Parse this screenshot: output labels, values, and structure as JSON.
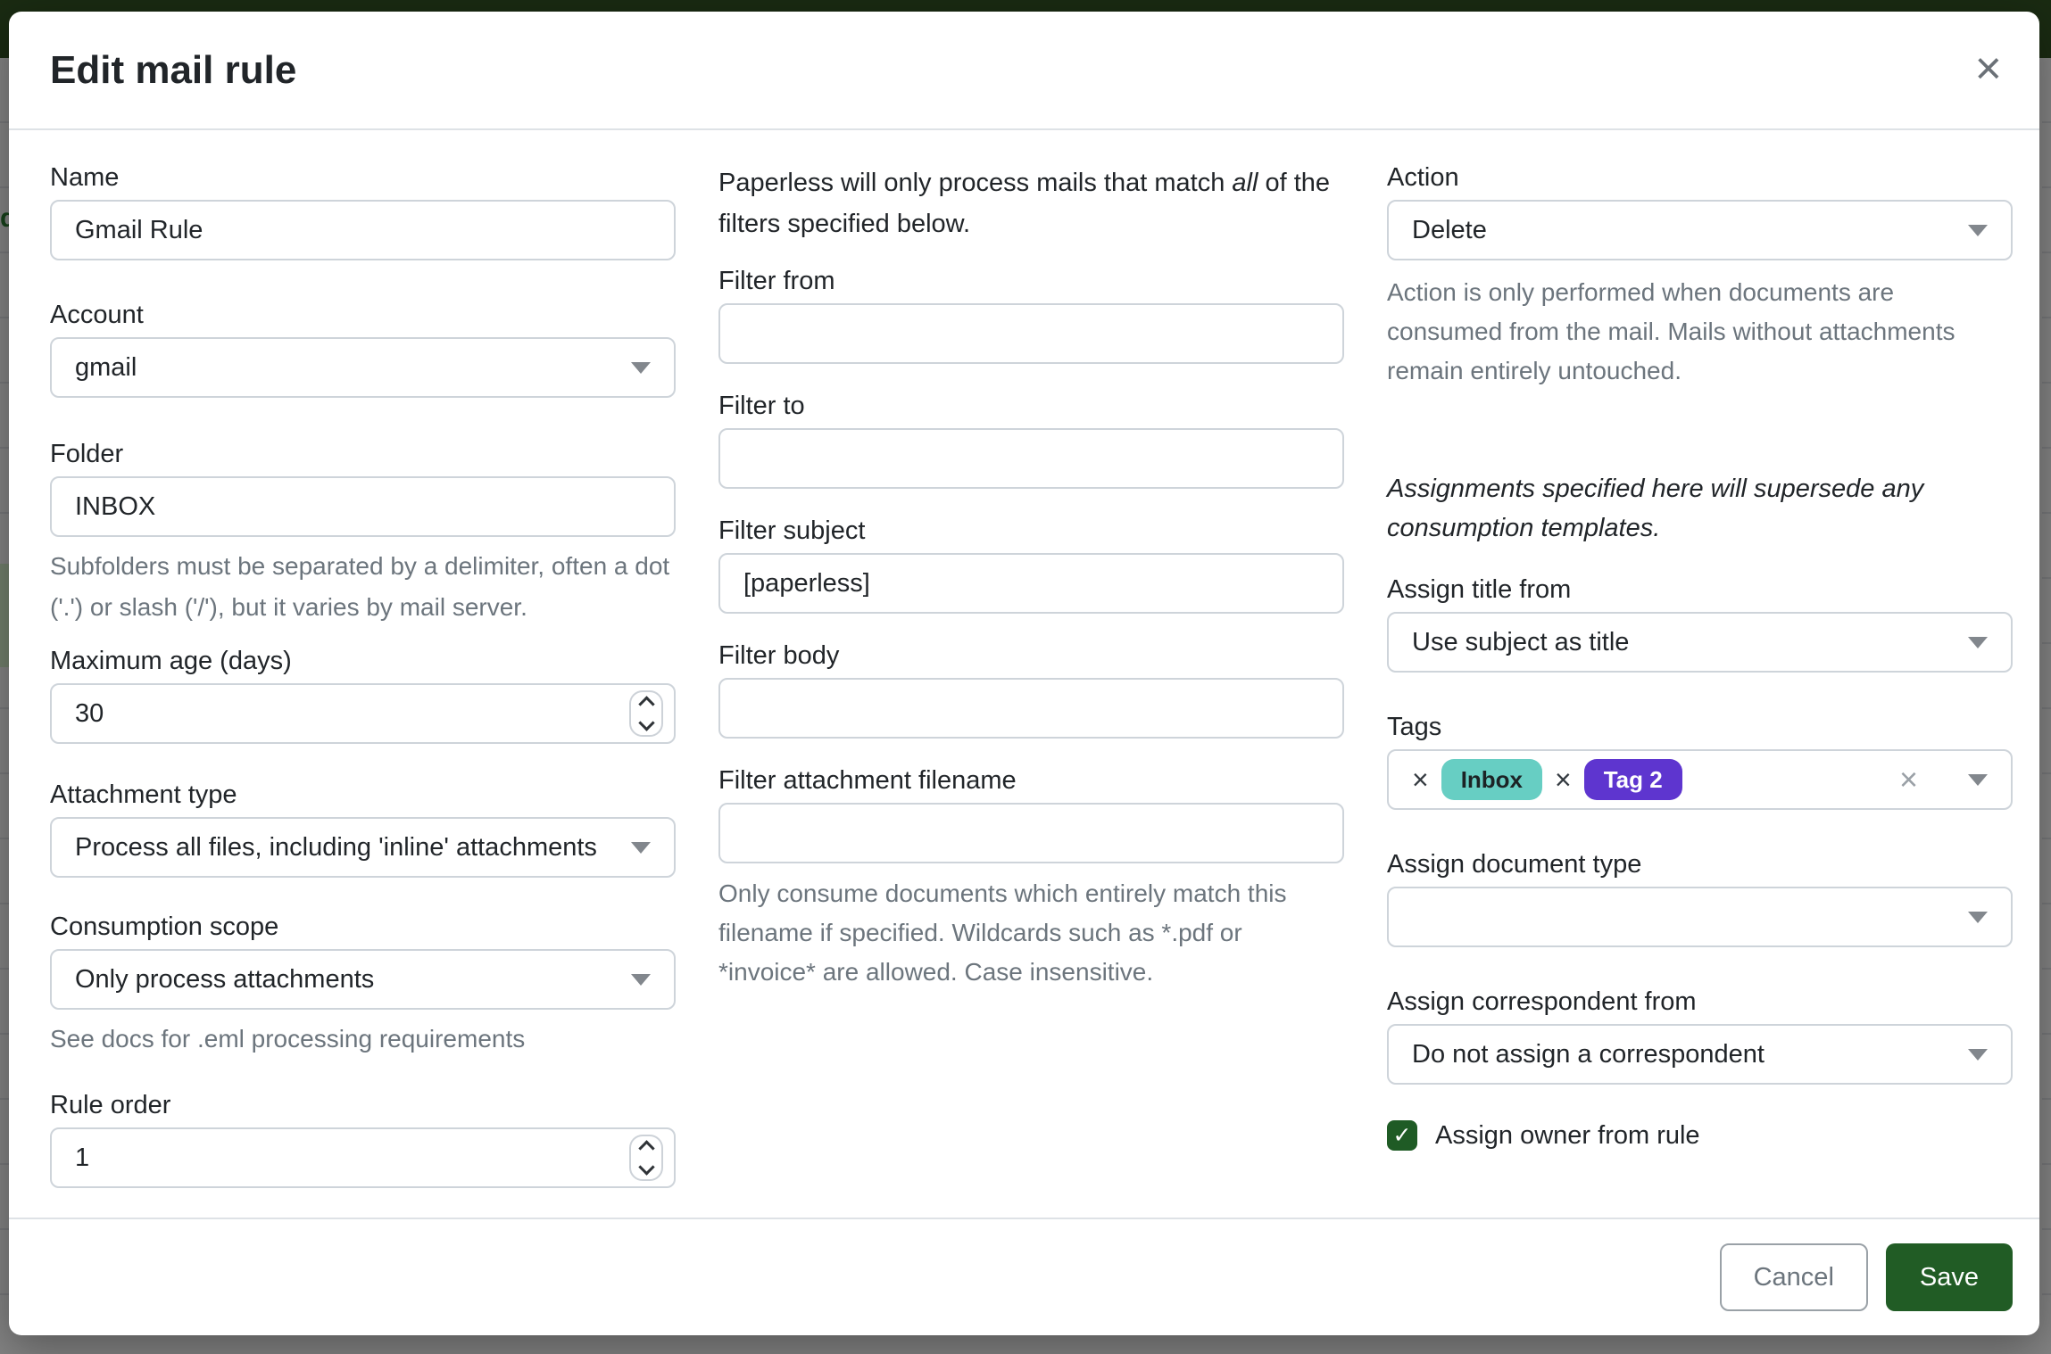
{
  "backdrop": {
    "stray_text": "d",
    "navbar_color": "#1a2b12",
    "dim_color": "#848484"
  },
  "modal": {
    "title": "Edit mail rule",
    "close_icon": "×"
  },
  "left": {
    "name": {
      "label": "Name",
      "value": "Gmail Rule"
    },
    "account": {
      "label": "Account",
      "value": "gmail"
    },
    "folder": {
      "label": "Folder",
      "value": "INBOX",
      "help": "Subfolders must be separated by a delimiter, often a dot ('.') or slash ('/'), but it varies by mail server."
    },
    "max_age": {
      "label": "Maximum age (days)",
      "value": "30"
    },
    "attachment_type": {
      "label": "Attachment type",
      "value": "Process all files, including 'inline' attachments"
    },
    "consumption_scope": {
      "label": "Consumption scope",
      "value": "Only process attachments",
      "help": "See docs for .eml processing requirements"
    },
    "rule_order": {
      "label": "Rule order",
      "value": "1"
    }
  },
  "middle": {
    "intro": {
      "pre": "Paperless will only process mails that match ",
      "em": "all",
      "post": " of the filters specified below."
    },
    "filter_from": {
      "label": "Filter from",
      "value": ""
    },
    "filter_to": {
      "label": "Filter to",
      "value": ""
    },
    "filter_subject": {
      "label": "Filter subject",
      "value": "[paperless]"
    },
    "filter_body": {
      "label": "Filter body",
      "value": ""
    },
    "filter_attachment_filename": {
      "label": "Filter attachment filename",
      "value": "",
      "help": "Only consume documents which entirely match this filename if specified. Wildcards such as *.pdf or *invoice* are allowed. Case insensitive."
    }
  },
  "right": {
    "action": {
      "label": "Action",
      "value": "Delete",
      "help": "Action is only performed when documents are consumed from the mail. Mails without attachments remain entirely untouched."
    },
    "note": "Assignments specified here will supersede any consumption templates.",
    "assign_title_from": {
      "label": "Assign title from",
      "value": "Use subject as title"
    },
    "tags": {
      "label": "Tags",
      "remove_icon": "×",
      "clear_icon": "×",
      "items": [
        {
          "name": "Inbox",
          "color": "#67cec3",
          "text_color": "#1c2325"
        },
        {
          "name": "Tag 2",
          "color": "#5e35cf",
          "text_color": "#ffffff"
        }
      ]
    },
    "assign_document_type": {
      "label": "Assign document type",
      "value": ""
    },
    "assign_correspondent_from": {
      "label": "Assign correspondent from",
      "value": "Do not assign a correspondent"
    },
    "assign_owner": {
      "label": "Assign owner from rule",
      "checked": true,
      "check_icon": "✓"
    }
  },
  "footer": {
    "cancel_label": "Cancel",
    "save_label": "Save"
  },
  "colors": {
    "primary_green": "#215c25",
    "checkbox_green": "#1f5b25",
    "navbar_green": "#1a2b12",
    "backdrop_gray": "#848484",
    "tag_inbox": "#67cec3",
    "tag_two": "#5e35cf"
  }
}
